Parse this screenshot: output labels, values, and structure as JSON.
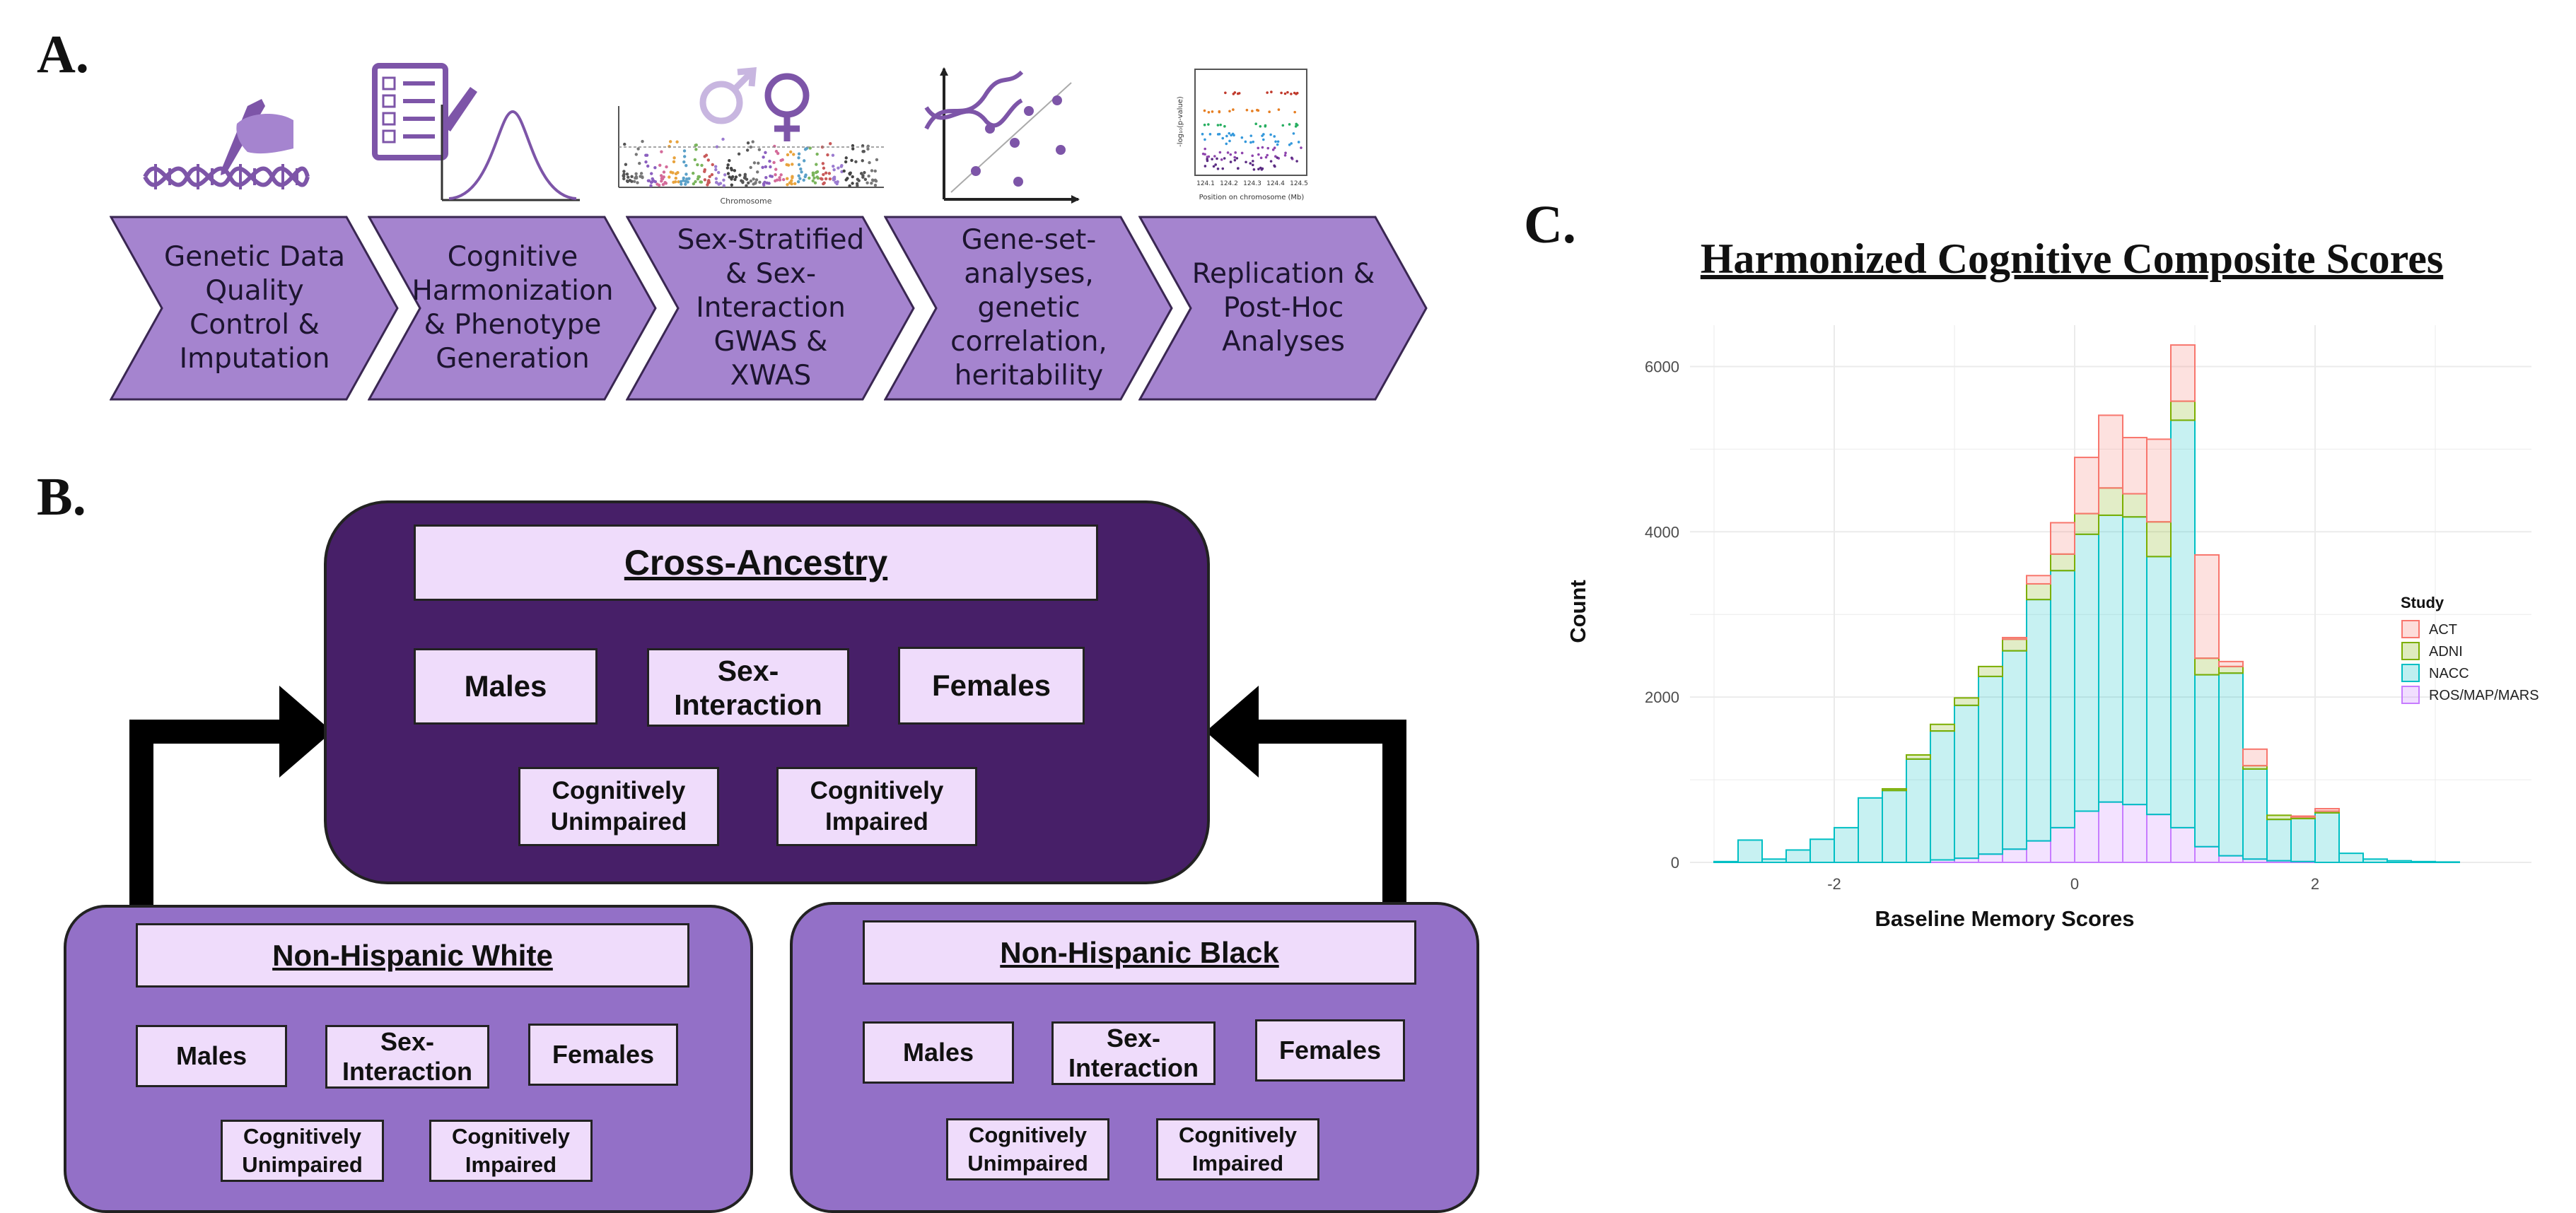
{
  "panels": {
    "a": "A.",
    "b": "B.",
    "c": "C."
  },
  "pipeline": {
    "steps": [
      {
        "label": "Genetic Data Quality Control & Imputation",
        "icon": "dna-hand-icon"
      },
      {
        "label": "Cognitive Harmonization & Phenotype Generation",
        "icon": "checklist-distribution-icon"
      },
      {
        "label": "Sex-Stratified & Sex-Interaction GWAS & XWAS",
        "icon": "sex-symbols-manhattan-icon"
      },
      {
        "label": "Gene-set-analyses, genetic correlation, heritability",
        "icon": "dna-scatter-icon"
      },
      {
        "label": "Replication & Post-Hoc Analyses",
        "icon": "locuszoom-plot-icon"
      }
    ],
    "mini_plot": {
      "ylabel": "-log₁₀(p-value)",
      "xlabel": "Position on chromosome (Mb)",
      "xticks": [
        "124.1",
        "124.2",
        "124.3",
        "124.4",
        "124.5"
      ]
    },
    "manhattan": {
      "xlabel": "Chromosome"
    }
  },
  "design": {
    "cross_ancestry": {
      "title": "Cross-Ancestry",
      "groups": [
        "Males",
        "Sex-Interaction",
        "Females",
        "Cognitively Unimpaired",
        "Cognitively Impaired"
      ]
    },
    "nhw": {
      "title": "Non-Hispanic White",
      "groups": [
        "Males",
        "Sex-Interaction",
        "Females",
        "Cognitively Unimpaired",
        "Cognitively Impaired"
      ]
    },
    "nhb": {
      "title": "Non-Hispanic Black",
      "groups": [
        "Males",
        "Sex-Interaction",
        "Females",
        "Cognitively Unimpaired",
        "Cognitively Impaired"
      ]
    },
    "colors": {
      "dark": "#471f68",
      "mid": "#9370c7",
      "light": "#efdcfb"
    }
  },
  "chart_data": {
    "type": "bar",
    "stacked": true,
    "title": "Harmonized Cognitive Composite Scores",
    "xlabel": "Baseline Memory Scores",
    "ylabel": "Count",
    "xlim": [
      -3.2,
      3.8
    ],
    "ylim": [
      0,
      6500
    ],
    "xticks": [
      -2,
      0,
      2
    ],
    "yticks": [
      0,
      2000,
      4000,
      6000
    ],
    "grid": true,
    "legend_position": "right",
    "legend_title": "Study",
    "bin_centers": [
      -2.9,
      -2.7,
      -2.5,
      -2.3,
      -2.1,
      -1.9,
      -1.7,
      -1.5,
      -1.3,
      -1.1,
      -0.9,
      -0.7,
      -0.5,
      -0.3,
      -0.1,
      0.1,
      0.3,
      0.5,
      0.7,
      0.9,
      1.1,
      1.3,
      1.5,
      1.7,
      1.9,
      2.1,
      2.3,
      2.5,
      2.7,
      2.9,
      3.1,
      3.3,
      3.5
    ],
    "series": [
      {
        "name": "ROS/MAP/MARS",
        "color": "#c77cff",
        "values": [
          0,
          0,
          0,
          0,
          0,
          0,
          0,
          0,
          0,
          30,
          50,
          100,
          160,
          260,
          420,
          620,
          730,
          700,
          580,
          420,
          190,
          80,
          40,
          20,
          10,
          0,
          0,
          0,
          0,
          0,
          0,
          0,
          0
        ]
      },
      {
        "name": "NACC",
        "color": "#00bfc4",
        "values": [
          10,
          270,
          40,
          150,
          280,
          420,
          780,
          870,
          1250,
          1560,
          1850,
          2150,
          2400,
          2920,
          3110,
          3350,
          3470,
          3480,
          3120,
          4930,
          2080,
          2210,
          1090,
          500,
          520,
          600,
          110,
          40,
          20,
          10,
          5,
          0,
          0
        ]
      },
      {
        "name": "ADNI",
        "color": "#7cae00",
        "values": [
          0,
          0,
          0,
          0,
          0,
          0,
          0,
          20,
          50,
          80,
          90,
          120,
          140,
          190,
          200,
          250,
          330,
          280,
          420,
          230,
          200,
          80,
          40,
          50,
          20,
          20,
          0,
          0,
          0,
          0,
          0,
          0,
          0
        ]
      },
      {
        "name": "ACT",
        "color": "#f8766d",
        "values": [
          0,
          0,
          0,
          0,
          0,
          0,
          0,
          0,
          0,
          0,
          0,
          0,
          20,
          100,
          380,
          680,
          880,
          680,
          1000,
          680,
          1250,
          60,
          200,
          0,
          10,
          30,
          0,
          0,
          0,
          0,
          0,
          0,
          0
        ]
      }
    ]
  }
}
